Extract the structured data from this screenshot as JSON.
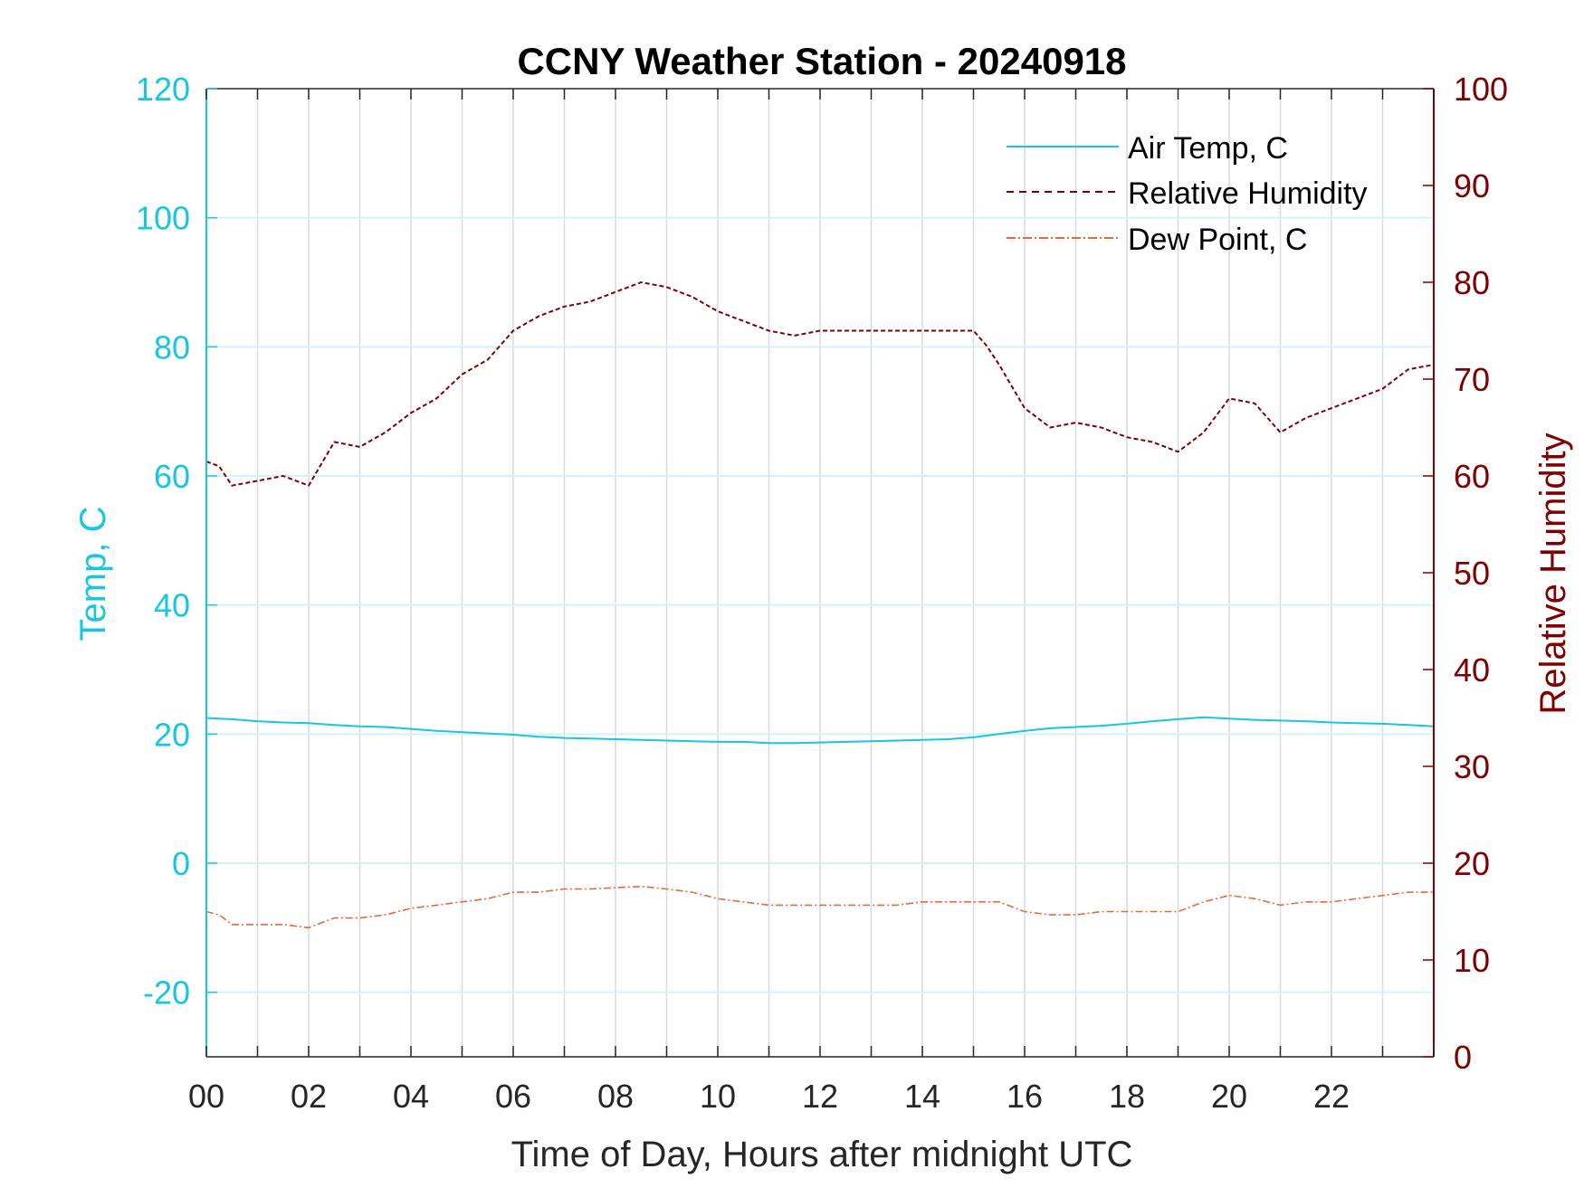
{
  "chart_data": {
    "type": "line",
    "title": "CCNY Weather Station - 20240918",
    "xlabel": "Time of Day, Hours after midnight UTC",
    "ylabel_left": "Temp, C",
    "ylabel_right": "Relative Humidity",
    "xlim": [
      0,
      24
    ],
    "ylim_left": [
      -30,
      120
    ],
    "ylim_right": [
      0,
      100
    ],
    "x_ticks": [
      0,
      2,
      4,
      6,
      8,
      10,
      12,
      14,
      16,
      18,
      20,
      22
    ],
    "x_tick_labels": [
      "00",
      "02",
      "04",
      "06",
      "08",
      "10",
      "12",
      "14",
      "16",
      "18",
      "20",
      "22"
    ],
    "y_left_ticks": [
      -20,
      0,
      20,
      40,
      60,
      80,
      100,
      120
    ],
    "y_left_tick_labels": [
      "-20",
      "0",
      "20",
      "40",
      "60",
      "80",
      "100",
      "120"
    ],
    "y_right_ticks": [
      0,
      10,
      20,
      30,
      40,
      50,
      60,
      70,
      80,
      90,
      100
    ],
    "y_right_tick_labels": [
      "0",
      "10",
      "20",
      "30",
      "40",
      "50",
      "60",
      "70",
      "80",
      "90",
      "100"
    ],
    "grid": true,
    "legend_position": "top-right",
    "colors": {
      "air_temp": "#16c7df",
      "relative_humidity": "#7f0000",
      "dew_point": "#e8683a",
      "grid_vertical": "#d6dbe3",
      "grid_horizontal": "#d3f3fa",
      "axis_frame": "#262626"
    },
    "series": [
      {
        "name": "Air Temp, C",
        "axis": "left",
        "style": "solid",
        "x": [
          0,
          0.5,
          1,
          1.5,
          2,
          2.5,
          3,
          3.5,
          4,
          4.5,
          5,
          5.5,
          6,
          6.5,
          7,
          7.5,
          8,
          8.5,
          9,
          9.5,
          10,
          10.5,
          11,
          11.5,
          12,
          12.5,
          13,
          13.5,
          14,
          14.5,
          15,
          15.5,
          16,
          16.5,
          17,
          17.5,
          18,
          18.5,
          19,
          19.5,
          20,
          20.5,
          21,
          21.5,
          22,
          22.5,
          23,
          23.5,
          24
        ],
        "values": [
          22.5,
          22.3,
          22.0,
          21.8,
          21.7,
          21.4,
          21.2,
          21.1,
          20.8,
          20.5,
          20.3,
          20.1,
          19.9,
          19.6,
          19.4,
          19.3,
          19.2,
          19.1,
          19.0,
          18.9,
          18.8,
          18.8,
          18.6,
          18.6,
          18.7,
          18.8,
          18.9,
          19.0,
          19.1,
          19.2,
          19.5,
          20.0,
          20.5,
          20.9,
          21.1,
          21.3,
          21.6,
          22.0,
          22.3,
          22.6,
          22.4,
          22.2,
          22.1,
          22.0,
          21.8,
          21.7,
          21.6,
          21.4,
          21.2
        ]
      },
      {
        "name": "Relative Humidity",
        "axis": "right",
        "style": "dashed",
        "x": [
          0,
          0.25,
          0.5,
          1,
          1.5,
          2,
          2.5,
          3,
          3.5,
          4,
          4.5,
          5,
          5.5,
          6,
          6.5,
          7,
          7.5,
          8,
          8.5,
          9,
          9.5,
          10,
          10.5,
          11,
          11.5,
          12,
          12.5,
          13,
          13.5,
          14,
          14.5,
          15,
          15.25,
          15.5,
          16,
          16.5,
          17,
          17.5,
          18,
          18.5,
          19,
          19.5,
          20,
          20.5,
          21,
          21.5,
          22,
          22.5,
          23,
          23.5,
          24
        ],
        "values": [
          61.5,
          61.0,
          59.0,
          59.5,
          60.0,
          59.0,
          63.5,
          63.0,
          64.5,
          66.5,
          68.0,
          70.5,
          72.0,
          75.0,
          76.5,
          77.5,
          78.0,
          79.0,
          80.0,
          79.5,
          78.5,
          77.0,
          76.0,
          75.0,
          74.5,
          75.0,
          75.0,
          75.0,
          75.0,
          75.0,
          75.0,
          75.0,
          73.5,
          71.5,
          67.0,
          65.0,
          65.5,
          65.0,
          64.0,
          63.5,
          62.5,
          64.5,
          68.0,
          67.5,
          64.5,
          66.0,
          67.0,
          68.0,
          69.0,
          71.0,
          71.5
        ]
      },
      {
        "name": "Dew Point, C",
        "axis": "left",
        "style": "dashdot",
        "x": [
          0,
          0.25,
          0.5,
          1,
          1.5,
          2,
          2.5,
          3,
          3.5,
          4,
          4.5,
          5,
          5.5,
          6,
          6.5,
          7,
          7.5,
          8,
          8.5,
          9,
          9.5,
          10,
          10.5,
          11,
          11.5,
          12,
          12.5,
          13,
          13.5,
          14,
          14.5,
          15,
          15.5,
          16,
          16.5,
          17,
          17.5,
          18,
          18.5,
          19,
          19.5,
          20,
          20.5,
          21,
          21.5,
          22,
          22.5,
          23,
          23.5,
          24
        ],
        "values": [
          -7.5,
          -8.0,
          -9.5,
          -9.5,
          -9.5,
          -10.0,
          -8.5,
          -8.5,
          -8.0,
          -7.0,
          -6.5,
          -6.0,
          -5.5,
          -4.5,
          -4.5,
          -4.0,
          -4.0,
          -3.8,
          -3.6,
          -4.0,
          -4.5,
          -5.5,
          -6.0,
          -6.5,
          -6.5,
          -6.5,
          -6.5,
          -6.5,
          -6.5,
          -6.0,
          -6.0,
          -6.0,
          -6.0,
          -7.5,
          -8.0,
          -8.0,
          -7.5,
          -7.5,
          -7.5,
          -7.5,
          -6.0,
          -5.0,
          -5.5,
          -6.5,
          -6.0,
          -6.0,
          -5.5,
          -5.0,
          -4.5,
          -4.5
        ]
      }
    ]
  }
}
